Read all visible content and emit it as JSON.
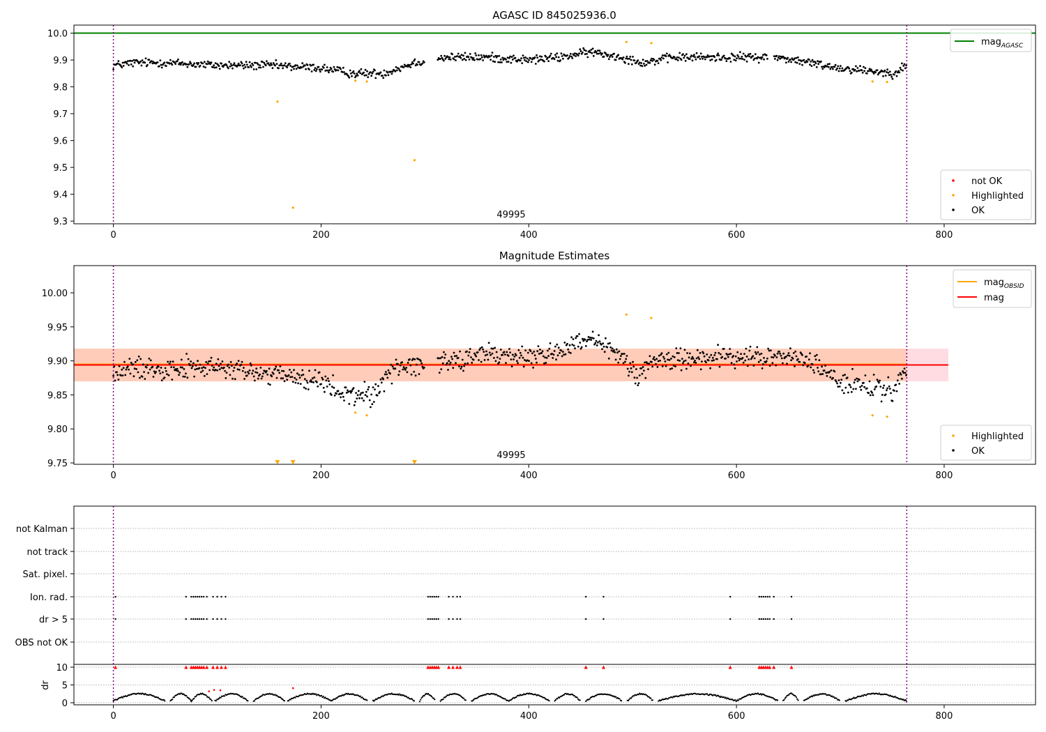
{
  "chart_data": [
    {
      "type": "scatter",
      "title": "AGASC ID 845025936.0",
      "xlim": [
        -38,
        888
      ],
      "ylim": [
        9.29,
        10.03
      ],
      "xticks": [
        0,
        200,
        400,
        600,
        800
      ],
      "yticks": [
        9.3,
        9.4,
        9.5,
        9.6,
        9.7,
        9.8,
        9.9,
        10.0
      ],
      "ytick_labels": [
        "9.3",
        "9.4",
        "9.5",
        "9.6",
        "9.7",
        "9.8",
        "9.9",
        "10.0"
      ],
      "obsid_label": "49995",
      "vlines": [
        0,
        764
      ],
      "hlines": [
        {
          "name": "mag_AGASC",
          "y": 10.0,
          "color": "#008000"
        }
      ],
      "legend_lines": [
        {
          "label": "mag",
          "sub": "AGASC",
          "color": "#008000"
        }
      ],
      "legend_points": [
        {
          "label": "not OK",
          "color": "#ff0000"
        },
        {
          "label": "Highlighted",
          "color": "#ffa500"
        },
        {
          "label": "OK",
          "color": "#000000"
        }
      ],
      "ok_trend": [
        [
          0,
          9.88
        ],
        [
          20,
          9.89
        ],
        [
          50,
          9.89
        ],
        [
          100,
          9.88
        ],
        [
          150,
          9.88
        ],
        [
          200,
          9.87
        ],
        [
          230,
          9.85
        ],
        [
          260,
          9.85
        ],
        [
          290,
          9.89
        ],
        [
          320,
          9.91
        ],
        [
          360,
          9.91
        ],
        [
          400,
          9.9
        ],
        [
          430,
          9.91
        ],
        [
          460,
          9.93
        ],
        [
          490,
          9.91
        ],
        [
          510,
          9.89
        ],
        [
          540,
          9.91
        ],
        [
          600,
          9.91
        ],
        [
          640,
          9.91
        ],
        [
          670,
          9.89
        ],
        [
          700,
          9.87
        ],
        [
          730,
          9.86
        ],
        [
          750,
          9.85
        ],
        [
          764,
          9.88
        ]
      ],
      "ok_noise": 0.016,
      "ok_gaps": [
        [
          300,
          312
        ],
        [
          630,
          636
        ]
      ],
      "highlighted": [
        [
          158,
          9.745
        ],
        [
          173,
          9.35
        ],
        [
          233,
          9.823
        ],
        [
          244,
          9.82
        ],
        [
          290,
          9.527
        ],
        [
          494,
          9.967
        ],
        [
          518,
          9.963
        ],
        [
          731,
          9.82
        ],
        [
          745,
          9.818
        ]
      ]
    },
    {
      "type": "scatter",
      "title": "Magnitude Estimates",
      "xlim": [
        -38,
        888
      ],
      "ylim": [
        9.748,
        10.04
      ],
      "xticks": [
        0,
        200,
        400,
        600,
        800
      ],
      "yticks": [
        9.75,
        9.8,
        9.85,
        9.9,
        9.95,
        10.0
      ],
      "ytick_labels": [
        "9.75",
        "9.80",
        "9.85",
        "9.90",
        "9.95",
        "10.00"
      ],
      "obsid_label": "49995",
      "vlines": [
        0,
        764
      ],
      "mag": 9.894,
      "mag_band": [
        9.87,
        9.918
      ],
      "mag_obsid": 9.895,
      "obsid_range": [
        -38,
        764
      ],
      "legend_lines": [
        {
          "label": "mag",
          "sub": "OBSID",
          "color": "#ffa500"
        },
        {
          "label": "mag",
          "sub": "",
          "color": "#ff0000"
        }
      ],
      "legend_points": [
        {
          "label": "Highlighted",
          "color": "#ffa500"
        },
        {
          "label": "OK",
          "color": "#000000"
        }
      ],
      "ok_trend": [
        [
          0,
          9.88
        ],
        [
          20,
          9.89
        ],
        [
          50,
          9.89
        ],
        [
          100,
          9.89
        ],
        [
          150,
          9.88
        ],
        [
          200,
          9.87
        ],
        [
          220,
          9.85
        ],
        [
          250,
          9.85
        ],
        [
          270,
          9.89
        ],
        [
          320,
          9.9
        ],
        [
          360,
          9.91
        ],
        [
          400,
          9.905
        ],
        [
          430,
          9.915
        ],
        [
          460,
          9.93
        ],
        [
          490,
          9.905
        ],
        [
          505,
          9.88
        ],
        [
          520,
          9.9
        ],
        [
          560,
          9.905
        ],
        [
          600,
          9.905
        ],
        [
          650,
          9.905
        ],
        [
          670,
          9.9
        ],
        [
          700,
          9.87
        ],
        [
          730,
          9.86
        ],
        [
          750,
          9.855
        ],
        [
          764,
          9.885
        ]
      ],
      "ok_noise": 0.016,
      "ok_gaps": [
        [
          300,
          312
        ]
      ],
      "highlighted": [
        [
          233,
          9.824
        ],
        [
          244,
          9.82
        ],
        [
          494,
          9.968
        ],
        [
          518,
          9.963
        ],
        [
          731,
          9.82
        ],
        [
          745,
          9.818
        ]
      ],
      "off_scale": [
        158,
        173,
        290
      ]
    },
    {
      "type": "scatter",
      "title": "",
      "xlim": [
        -38,
        888
      ],
      "xticks": [
        0,
        200,
        400,
        600,
        800
      ],
      "vlines": [
        0,
        764
      ],
      "flag_labels": [
        "not Kalman",
        "not track",
        "Sat. pixel.",
        "Ion. rad.",
        "dr > 5",
        "OBS not OK"
      ],
      "flag_rows": {
        "Ion. rad.": [
          2,
          70,
          75,
          77,
          79,
          81,
          83,
          85,
          87,
          90,
          96,
          100,
          104,
          108,
          303,
          305,
          307,
          309,
          311,
          313,
          323,
          327,
          331,
          334,
          455,
          472,
          594,
          622,
          624,
          626,
          628,
          630,
          632,
          636,
          653
        ],
        "dr > 5": [
          2,
          70,
          75,
          77,
          79,
          81,
          83,
          85,
          87,
          90,
          96,
          100,
          104,
          108,
          303,
          305,
          307,
          309,
          311,
          313,
          323,
          327,
          331,
          334,
          455,
          472,
          594,
          622,
          624,
          626,
          628,
          630,
          632,
          636,
          653
        ]
      },
      "dr_ylabel": "dr",
      "dr_yticks": [
        0,
        5,
        10
      ],
      "dr_ylim": [
        0,
        10
      ],
      "dr_red_at_10": [
        2,
        70,
        75,
        77,
        79,
        81,
        83,
        85,
        87,
        90,
        96,
        100,
        104,
        108,
        303,
        305,
        307,
        309,
        311,
        313,
        323,
        327,
        331,
        334,
        455,
        472,
        594,
        622,
        624,
        626,
        628,
        630,
        632,
        636,
        653
      ],
      "dr_red_low": [
        [
          92,
          3.2
        ],
        [
          97,
          3.6
        ],
        [
          103,
          3.5
        ],
        [
          173,
          4.1
        ]
      ],
      "dr_black_segments": [
        [
          0,
          50
        ],
        [
          55,
          75
        ],
        [
          75,
          95
        ],
        [
          98,
          130
        ],
        [
          135,
          165
        ],
        [
          168,
          210
        ],
        [
          210,
          245
        ],
        [
          250,
          290
        ],
        [
          295,
          310
        ],
        [
          315,
          340
        ],
        [
          345,
          380
        ],
        [
          380,
          420
        ],
        [
          425,
          450
        ],
        [
          455,
          490
        ],
        [
          495,
          520
        ],
        [
          525,
          600
        ],
        [
          600,
          640
        ],
        [
          645,
          660
        ],
        [
          665,
          700
        ],
        [
          705,
          764
        ]
      ]
    }
  ]
}
